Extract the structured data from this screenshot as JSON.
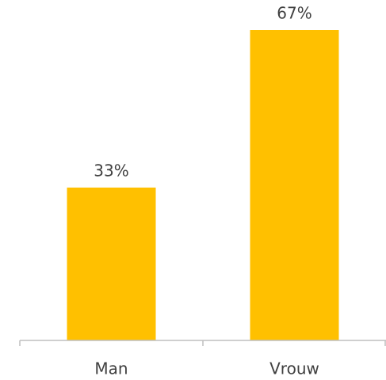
{
  "chart_data": {
    "type": "bar",
    "categories": [
      "Man",
      "Vrouw"
    ],
    "values": [
      33,
      67
    ],
    "value_labels": [
      "33%",
      "67%"
    ],
    "color": "#ffc000"
  }
}
